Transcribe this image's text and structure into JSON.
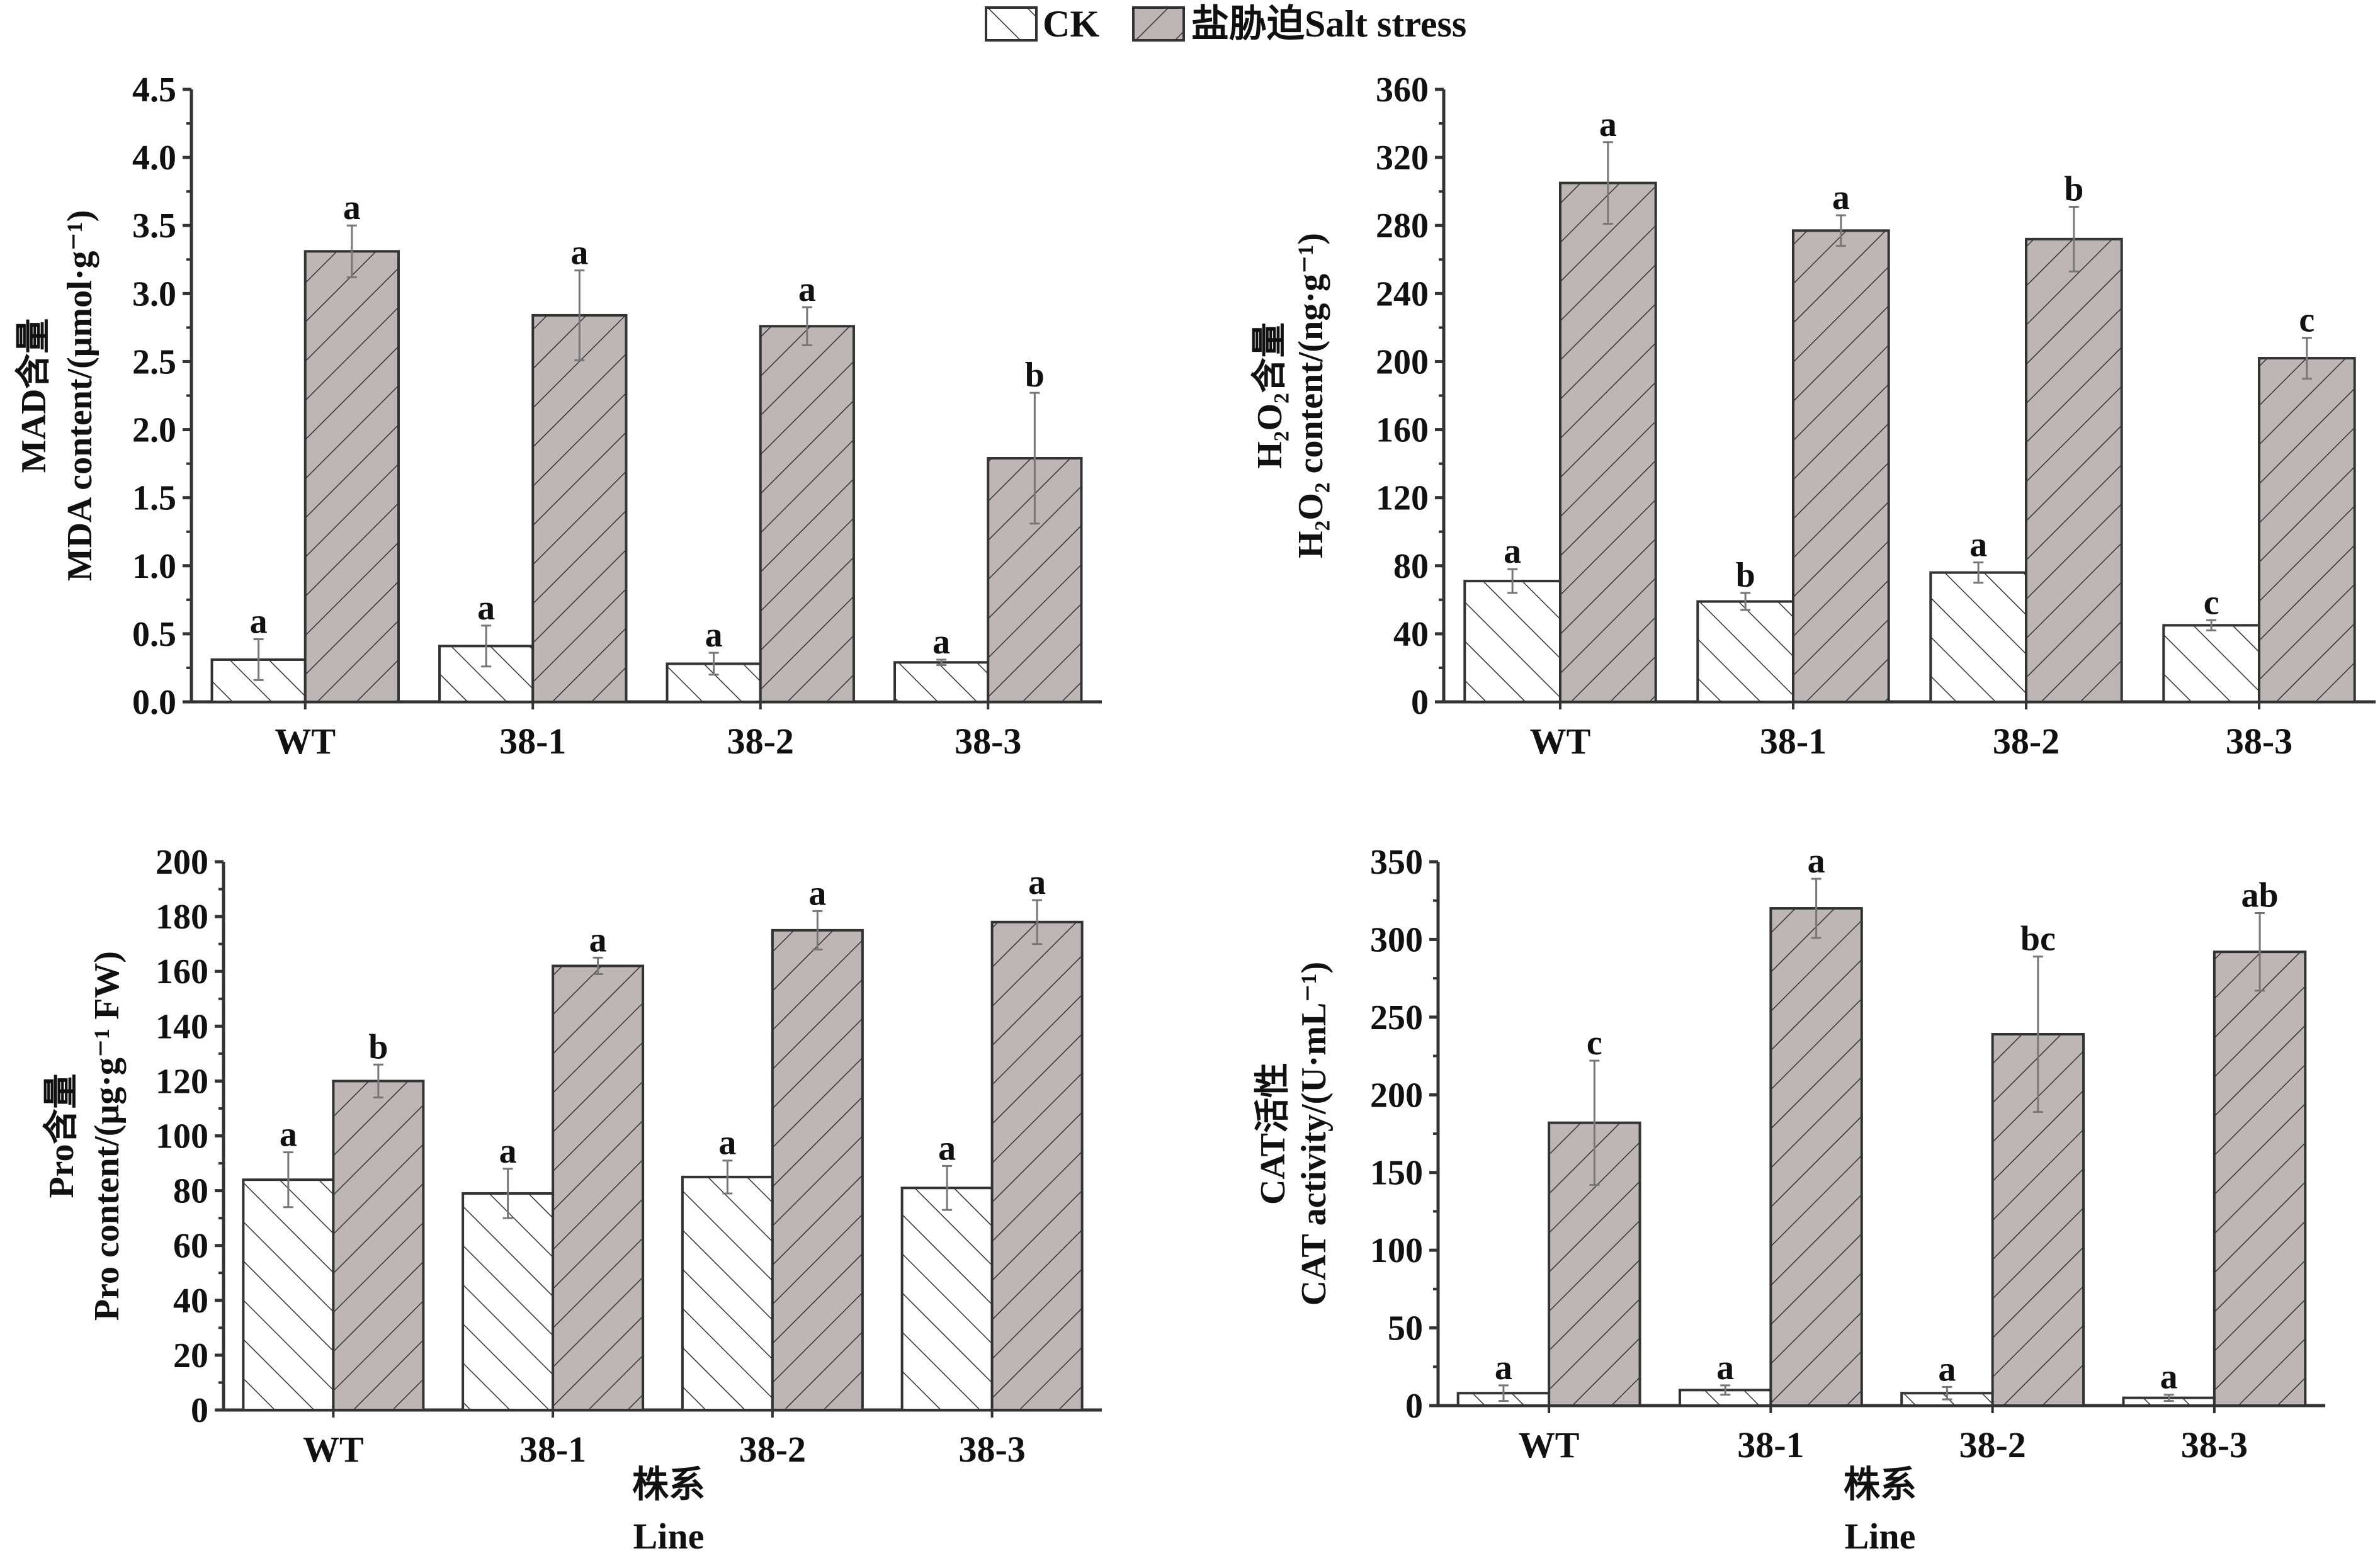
{
  "legend": {
    "ck": "CK",
    "salt": "盐胁迫Salt stress"
  },
  "colors": {
    "ck_fill": "#ffffff",
    "salt_fill": "#bdb6b4",
    "line": "#222222",
    "err": "#777777"
  },
  "xaxis": {
    "line1": "株系",
    "line2": "Line"
  },
  "chart_data": [
    {
      "type": "bar",
      "title": "",
      "ylabel_cn": "MAD含量",
      "ylabel": "MDA content/(μmol·g⁻¹)",
      "ylim": [
        0,
        4.5
      ],
      "yticks": [
        "0.0",
        "0.5",
        "1.0",
        "1.5",
        "2.0",
        "2.5",
        "3.0",
        "3.5",
        "4.0",
        "4.5"
      ],
      "ystep": 0.5,
      "categories": [
        "WT",
        "38-1",
        "38-2",
        "38-3"
      ],
      "series": [
        {
          "name": "CK",
          "values": [
            0.31,
            0.41,
            0.28,
            0.29
          ],
          "errors": [
            0.15,
            0.15,
            0.08,
            0.02
          ],
          "letters": [
            "a",
            "a",
            "a",
            "a"
          ]
        },
        {
          "name": "Salt stress",
          "values": [
            3.31,
            2.84,
            2.76,
            1.79
          ],
          "errors": [
            0.19,
            0.33,
            0.14,
            0.48
          ],
          "letters": [
            "a",
            "a",
            "a",
            "b"
          ]
        }
      ]
    },
    {
      "type": "bar",
      "title": "",
      "ylabel_cn": "H₂O₂含量",
      "ylabel": "H₂O₂ content/(ng·g⁻¹)",
      "ylim": [
        0,
        360
      ],
      "yticks": [
        "0",
        "40",
        "80",
        "120",
        "160",
        "200",
        "240",
        "280",
        "320",
        "360"
      ],
      "ystep": 40,
      "categories": [
        "WT",
        "38-1",
        "38-2",
        "38-3"
      ],
      "series": [
        {
          "name": "CK",
          "values": [
            71,
            59,
            76,
            45
          ],
          "errors": [
            7,
            5,
            6,
            3
          ],
          "letters": [
            "a",
            "b",
            "a",
            "c"
          ]
        },
        {
          "name": "Salt stress",
          "values": [
            305,
            277,
            272,
            202
          ],
          "errors": [
            24,
            9,
            19,
            12
          ],
          "letters": [
            "a",
            "a",
            "b",
            "c"
          ]
        }
      ]
    },
    {
      "type": "bar",
      "title": "",
      "ylabel_cn": "Pro含量",
      "ylabel": "Pro content/(μg·g⁻¹ FW)",
      "ylim": [
        0,
        200
      ],
      "yticks": [
        "0",
        "20",
        "40",
        "60",
        "80",
        "100",
        "120",
        "140",
        "160",
        "180",
        "200"
      ],
      "ystep": 20,
      "categories": [
        "WT",
        "38-1",
        "38-2",
        "38-3"
      ],
      "series": [
        {
          "name": "CK",
          "values": [
            84,
            79,
            85,
            81
          ],
          "errors": [
            10,
            9,
            6,
            8
          ],
          "letters": [
            "a",
            "a",
            "a",
            "a"
          ]
        },
        {
          "name": "Salt stress",
          "values": [
            120,
            162,
            175,
            178
          ],
          "errors": [
            6,
            3,
            7,
            8
          ],
          "letters": [
            "b",
            "a",
            "a",
            "a"
          ]
        }
      ]
    },
    {
      "type": "bar",
      "title": "",
      "ylabel_cn": "CAT活性",
      "ylabel": "CAT activity/(U·mL⁻¹)",
      "ylim": [
        0,
        350
      ],
      "yticks": [
        "0",
        "50",
        "100",
        "150",
        "200",
        "250",
        "300",
        "350"
      ],
      "ystep": 50,
      "categories": [
        "WT",
        "38-1",
        "38-2",
        "38-3"
      ],
      "series": [
        {
          "name": "CK",
          "values": [
            8,
            10,
            8,
            5
          ],
          "errors": [
            5,
            3,
            4,
            2
          ],
          "letters": [
            "a",
            "a",
            "a",
            "a"
          ]
        },
        {
          "name": "Salt stress",
          "values": [
            182,
            320,
            239,
            292
          ],
          "errors": [
            40,
            19,
            50,
            25
          ],
          "letters": [
            "c",
            "a",
            "bc",
            "ab"
          ]
        }
      ]
    }
  ]
}
